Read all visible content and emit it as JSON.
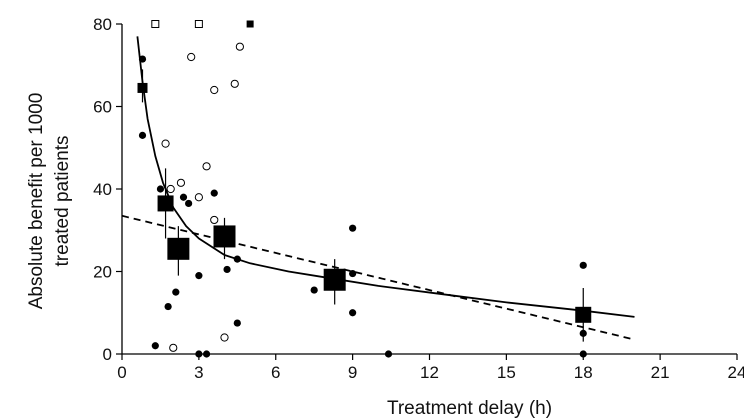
{
  "chart_data": {
    "type": "scatter",
    "xlabel": "Treatment delay (h)",
    "ylabel_lines": [
      "Absolute benefit per 1000",
      "treated patients"
    ],
    "xlim": [
      0,
      24
    ],
    "ylim": [
      0,
      80
    ],
    "x_ticks": [
      "0",
      "3",
      "6",
      "9",
      "12",
      "15",
      "18",
      "21",
      "24"
    ],
    "y_ticks": [
      "0",
      "20",
      "40",
      "60",
      "80"
    ],
    "grid": false,
    "legend": "none",
    "colors": {
      "ink": "#000000",
      "open_fill": "#ffffff"
    },
    "filled_circles": [
      [
        0.8,
        71.5
      ],
      [
        0.8,
        53
      ],
      [
        1.3,
        2
      ],
      [
        1.5,
        40
      ],
      [
        1.8,
        11.5
      ],
      [
        2.1,
        15
      ],
      [
        2.4,
        38
      ],
      [
        2.6,
        36.5
      ],
      [
        3.0,
        19
      ],
      [
        3.0,
        0
      ],
      [
        3.3,
        0
      ],
      [
        3.6,
        39
      ],
      [
        4.1,
        20.5
      ],
      [
        4.5,
        23
      ],
      [
        4.5,
        7.5
      ],
      [
        7.5,
        15.5
      ],
      [
        9.0,
        30.5
      ],
      [
        9.0,
        19.5
      ],
      [
        9.0,
        10
      ],
      [
        10.4,
        0
      ],
      [
        18.0,
        21.5
      ],
      [
        18.0,
        5
      ],
      [
        18.0,
        0
      ]
    ],
    "open_circles": [
      [
        1.7,
        51
      ],
      [
        1.9,
        40
      ],
      [
        2.0,
        1.5
      ],
      [
        2.3,
        41.5
      ],
      [
        2.7,
        72
      ],
      [
        3.0,
        38
      ],
      [
        3.3,
        45.5
      ],
      [
        3.6,
        64
      ],
      [
        3.6,
        32.5
      ],
      [
        4.0,
        4
      ],
      [
        4.4,
        65.5
      ],
      [
        4.6,
        74.5
      ]
    ],
    "open_squares": [
      [
        1.3,
        80
      ],
      [
        3.0,
        80
      ]
    ],
    "filled_square_small": [
      [
        5.0,
        80
      ]
    ],
    "group_means": [
      {
        "x": 0.8,
        "y": 64.5,
        "ci": [
          61,
          69
        ],
        "size": "small"
      },
      {
        "x": 1.7,
        "y": 36.5,
        "ci": [
          28,
          45
        ],
        "size": "medium"
      },
      {
        "x": 2.2,
        "y": 25.5,
        "ci": [
          19,
          31
        ],
        "size": "large"
      },
      {
        "x": 4.0,
        "y": 28.5,
        "ci": [
          23,
          33
        ],
        "size": "large"
      },
      {
        "x": 8.3,
        "y": 18,
        "ci": [
          12,
          23
        ],
        "size": "large"
      },
      {
        "x": 18.0,
        "y": 9.5,
        "ci": [
          3,
          16
        ],
        "size": "medium"
      }
    ],
    "series": [
      {
        "style": "solid",
        "x": [
          0.6,
          0.8,
          1.0,
          1.3,
          1.6,
          2.0,
          2.5,
          3.0,
          4.0,
          5.0,
          6.5,
          8.0,
          10.0,
          12.5,
          15.0,
          18.0,
          20.0
        ],
        "y": [
          77,
          66,
          57,
          48,
          41.5,
          35.5,
          31,
          28,
          24,
          22,
          20,
          18.5,
          16.5,
          14.5,
          12.5,
          10.5,
          9
        ]
      },
      {
        "style": "dashed",
        "x": [
          0.0,
          20.0
        ],
        "y": [
          33.5,
          3.5
        ]
      }
    ]
  }
}
